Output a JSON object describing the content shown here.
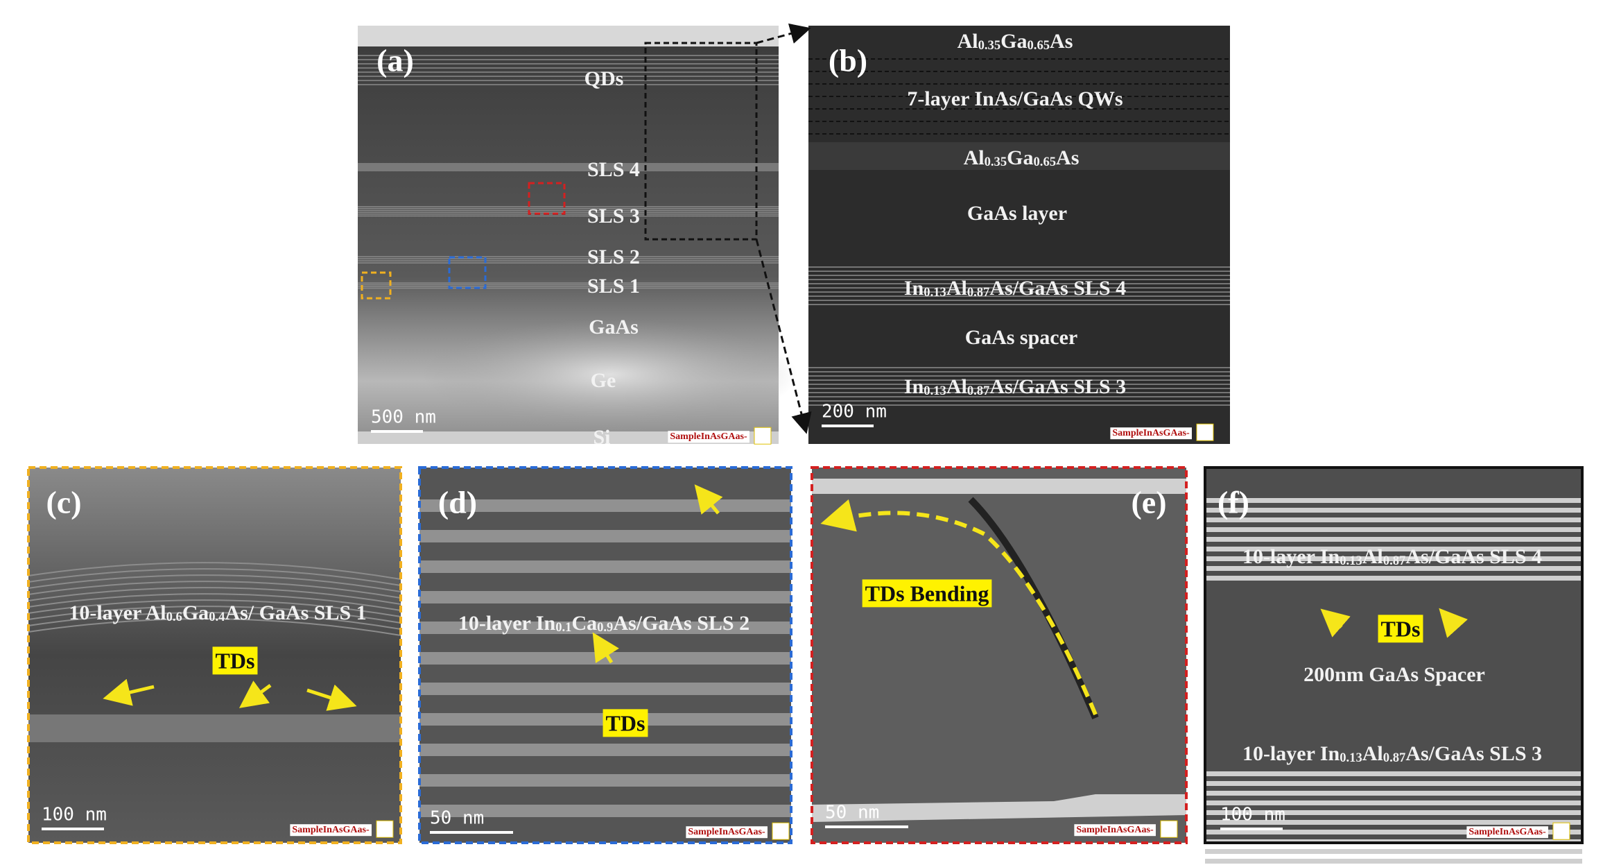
{
  "panels": [
    {
      "label": "(a)",
      "scale_bar": "500 nm",
      "watermark": "SampleInAsGAas-",
      "texts": [
        [
          "QDs"
        ],
        [
          "SLS 4"
        ],
        [
          "SLS 3"
        ],
        [
          "SLS 2"
        ],
        [
          "SLS 1"
        ],
        [
          "GaAs"
        ],
        [
          "Ge"
        ],
        [
          "Si"
        ]
      ]
    },
    {
      "label": "(b)",
      "scale_bar": "200 nm",
      "watermark": "SampleInAsGAas-",
      "texts": [
        [
          "Al",
          "0.35",
          "Ga",
          "0.65",
          "As"
        ],
        [
          "7-layer  InAs/GaAs QWs"
        ],
        [
          "Al",
          "0.35",
          "Ga",
          "0.65",
          "As"
        ],
        [
          "GaAs layer"
        ],
        [
          "In",
          "0.13",
          "Al",
          "0.87",
          "As/GaAs SLS 4"
        ],
        [
          "GaAs spacer"
        ],
        [
          "In",
          "0.13",
          "Al",
          "0.87",
          "As/GaAs SLS 3"
        ]
      ]
    },
    {
      "label": "(c)",
      "scale_bar": "100 nm",
      "watermark": "SampleInAsGAas-",
      "texts": [
        [
          "10-layer Al",
          "0.6",
          "Ga",
          "0.4",
          "As/ GaAs SLS 1"
        ]
      ],
      "tags": [
        "TDs"
      ]
    },
    {
      "label": "(d)",
      "scale_bar": "50 nm",
      "watermark": "SampleInAsGAas-",
      "texts": [
        [
          "10-layer In",
          "0.1",
          "Ca",
          "0.9",
          "As/GaAs SLS 2"
        ]
      ],
      "tags": [
        "TDs"
      ]
    },
    {
      "label": "(e)",
      "scale_bar": "50 nm",
      "watermark": "SampleInAsGAas-",
      "texts": [],
      "tags": [
        "TDs Bending"
      ]
    },
    {
      "label": "(f)",
      "scale_bar": "100 nm",
      "watermark": "SampleInAsGAas-",
      "texts": [
        [
          "10-layer In",
          "0.13",
          "Al",
          "0.87",
          "As/GaAs SLS 4"
        ],
        [
          "200nm GaAs Spacer"
        ],
        [
          "10-layer In",
          "0.13",
          "Al",
          "0.87",
          "As/GaAs SLS 3"
        ]
      ],
      "tags": [
        "TDs"
      ]
    }
  ]
}
